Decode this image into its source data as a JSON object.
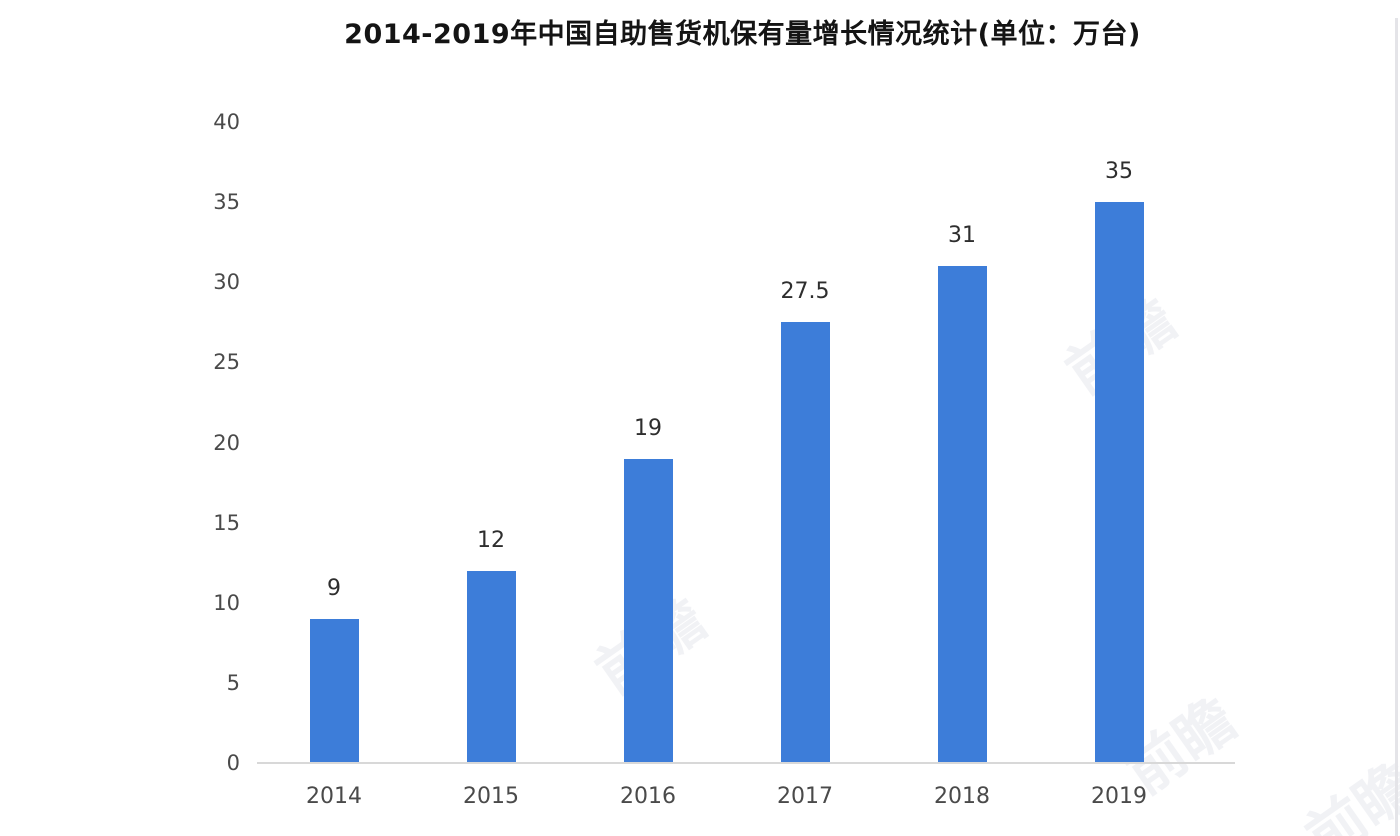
{
  "chart_data": {
    "type": "bar",
    "title": "2014-2019年中国自助售货机保有量增长情况统计(单位：万台)",
    "categories": [
      "2014",
      "2015",
      "2016",
      "2017",
      "2018",
      "2019"
    ],
    "values": [
      9,
      12,
      19,
      27.5,
      31,
      35
    ],
    "data_labels": [
      "9",
      "12",
      "19",
      "27.5",
      "31",
      "35"
    ],
    "unit": "万台",
    "xlabel": "",
    "ylabel": "",
    "ylim": [
      0,
      40
    ],
    "yticks": [
      0,
      5,
      10,
      15,
      20,
      25,
      30,
      35,
      40
    ],
    "grid": false,
    "legend": "none",
    "bar_color": "#3d7dd9"
  },
  "watermark": {
    "text": "前瞻"
  },
  "colors": {
    "page_bg": "#ffffff",
    "bar": "#3d7dd9",
    "axis_line": "#d8d8d8",
    "title_text": "#141414",
    "tick_text": "#4a4a4a",
    "value_text": "#2e2e2e"
  }
}
